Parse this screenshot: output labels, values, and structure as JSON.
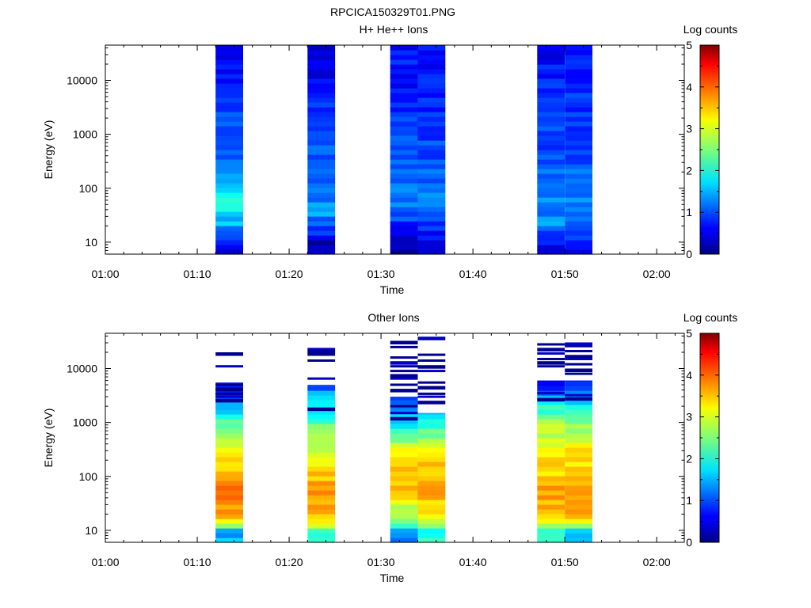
{
  "figure_title": "RPCICA150329T01.PNG",
  "chart_data": [
    {
      "type": "heatmap",
      "title": "H+ He++ Ions",
      "xlabel": "Time",
      "ylabel": "Energy (eV)",
      "x_ticks": [
        "01:00",
        "01:10",
        "01:20",
        "01:30",
        "01:40",
        "01:50",
        "02:00"
      ],
      "x_range": [
        "01:00",
        "02:03"
      ],
      "y_scale": "log",
      "y_ticks": [
        "10",
        "100",
        "1000",
        "10000"
      ],
      "y_range": [
        6,
        45000
      ],
      "colorbar": {
        "label": "Log counts",
        "ticks": [
          "0",
          "1",
          "2",
          "3",
          "4",
          "5"
        ],
        "range": [
          0,
          5
        ],
        "colormap": "jet"
      },
      "columns": [
        {
          "start": "01:12",
          "end": "01:15",
          "profile": [
            [
              7.5,
              0.6
            ],
            [
              10,
              1.0
            ],
            [
              16,
              1.2
            ],
            [
              22,
              1.5
            ],
            [
              30,
              1.6
            ],
            [
              45,
              1.9
            ],
            [
              70,
              2.0
            ],
            [
              90,
              1.8
            ],
            [
              150,
              1.3
            ],
            [
              300,
              1.1
            ],
            [
              1000,
              1.0
            ],
            [
              3000,
              0.9
            ],
            [
              10000,
              0.7
            ],
            [
              30000,
              0.6
            ],
            [
              45000,
              0.5
            ]
          ]
        },
        {
          "start": "01:22",
          "end": "01:25",
          "profile": [
            [
              7.5,
              0.2
            ],
            [
              10,
              0.3
            ],
            [
              14,
              0.8
            ],
            [
              25,
              1.1
            ],
            [
              40,
              1.5
            ],
            [
              60,
              1.3
            ],
            [
              100,
              1.2
            ],
            [
              300,
              1.1
            ],
            [
              1000,
              1.0
            ],
            [
              3000,
              0.8
            ],
            [
              10000,
              0.6
            ],
            [
              30000,
              0.5
            ],
            [
              45000,
              0.5
            ]
          ]
        },
        {
          "start": "01:31",
          "end": "01:34",
          "profile": [
            [
              7.5,
              0.3
            ],
            [
              12,
              0.4
            ],
            [
              20,
              0.8
            ],
            [
              30,
              1.0
            ],
            [
              60,
              1.2
            ],
            [
              150,
              1.1
            ],
            [
              500,
              1.0
            ],
            [
              2000,
              0.9
            ],
            [
              10000,
              0.7
            ],
            [
              30000,
              0.7
            ],
            [
              45000,
              0.6
            ]
          ]
        },
        {
          "start": "01:34",
          "end": "01:37",
          "profile": [
            [
              7.5,
              0.4
            ],
            [
              12,
              0.6
            ],
            [
              20,
              0.9
            ],
            [
              30,
              1.1
            ],
            [
              60,
              1.2
            ],
            [
              150,
              1.1
            ],
            [
              500,
              1.0
            ],
            [
              2000,
              0.8
            ],
            [
              10000,
              0.7
            ],
            [
              30000,
              0.6
            ],
            [
              45000,
              0.6
            ]
          ]
        },
        {
          "start": "01:47",
          "end": "01:50",
          "profile": [
            [
              7.5,
              0.5
            ],
            [
              12,
              0.7
            ],
            [
              20,
              1.4
            ],
            [
              30,
              1.3
            ],
            [
              60,
              1.3
            ],
            [
              150,
              1.1
            ],
            [
              500,
              1.0
            ],
            [
              2000,
              0.9
            ],
            [
              10000,
              0.8
            ],
            [
              30000,
              0.6
            ],
            [
              45000,
              0.6
            ]
          ]
        },
        {
          "start": "01:50",
          "end": "01:53",
          "profile": [
            [
              7.5,
              0.5
            ],
            [
              12,
              0.8
            ],
            [
              20,
              1.2
            ],
            [
              30,
              1.3
            ],
            [
              60,
              1.2
            ],
            [
              150,
              1.1
            ],
            [
              500,
              1.0
            ],
            [
              2000,
              0.9
            ],
            [
              10000,
              0.8
            ],
            [
              30000,
              0.6
            ],
            [
              45000,
              0.6
            ]
          ]
        }
      ]
    },
    {
      "type": "heatmap",
      "title": "Other Ions",
      "xlabel": "Time",
      "ylabel": "Energy (eV)",
      "x_ticks": [
        "01:00",
        "01:10",
        "01:20",
        "01:30",
        "01:40",
        "01:50",
        "02:00"
      ],
      "x_range": [
        "01:00",
        "02:03"
      ],
      "y_scale": "log",
      "y_ticks": [
        "10",
        "100",
        "1000",
        "10000"
      ],
      "y_range": [
        6,
        45000
      ],
      "colorbar": {
        "label": "Log counts",
        "ticks": [
          "0",
          "1",
          "2",
          "3",
          "4",
          "5"
        ],
        "range": [
          0,
          5
        ],
        "colormap": "jet"
      },
      "columns": [
        {
          "start": "01:12",
          "end": "01:15",
          "top": 5500,
          "profile": [
            [
              7.5,
              1.5
            ],
            [
              10,
              1.5
            ],
            [
              13,
              3.1
            ],
            [
              16,
              3.1
            ],
            [
              20,
              3.6
            ],
            [
              35,
              3.7
            ],
            [
              55,
              3.9
            ],
            [
              80,
              3.9
            ],
            [
              100,
              3.6
            ],
            [
              200,
              3.2
            ],
            [
              400,
              3.0
            ],
            [
              700,
              2.7
            ],
            [
              1200,
              2.2
            ],
            [
              1800,
              1.6
            ],
            [
              3000,
              1.0
            ],
            [
              5500,
              0.6
            ]
          ],
          "sparse": [
            2600,
            3000,
            3400,
            4200,
            5000,
            11000,
            19000
          ]
        },
        {
          "start": "01:22",
          "end": "01:25",
          "top": 5000,
          "profile": [
            [
              7.5,
              2.0
            ],
            [
              10,
              2.0
            ],
            [
              13,
              3.1
            ],
            [
              16,
              3.1
            ],
            [
              20,
              3.4
            ],
            [
              40,
              3.6
            ],
            [
              70,
              3.6
            ],
            [
              100,
              3.4
            ],
            [
              200,
              3.1
            ],
            [
              400,
              2.8
            ],
            [
              800,
              2.4
            ],
            [
              1500,
              2.0
            ],
            [
              3000,
              1.6
            ],
            [
              5000,
              1.0
            ]
          ],
          "sparse": [
            1800,
            6500,
            14000,
            19000,
            21000,
            23000
          ]
        },
        {
          "start": "01:31",
          "end": "01:34",
          "top": 3000,
          "profile": [
            [
              7.5,
              1.3
            ],
            [
              10,
              1.3
            ],
            [
              13,
              2.3
            ],
            [
              20,
              2.6
            ],
            [
              35,
              3.1
            ],
            [
              60,
              3.4
            ],
            [
              100,
              3.6
            ],
            [
              200,
              3.3
            ],
            [
              400,
              2.8
            ],
            [
              800,
              2.0
            ],
            [
              1500,
              1.4
            ],
            [
              3000,
              0.7
            ]
          ],
          "sparse": [
            1200,
            1500,
            2000,
            4000,
            5000,
            6500,
            7500,
            9000,
            11000,
            13000,
            16000,
            25000,
            31000
          ]
        },
        {
          "start": "01:34",
          "end": "01:37",
          "top": 1500,
          "profile": [
            [
              7.5,
              2.0
            ],
            [
              10,
              2.0
            ],
            [
              13,
              3.0
            ],
            [
              20,
              3.1
            ],
            [
              35,
              3.4
            ],
            [
              60,
              3.6
            ],
            [
              100,
              3.5
            ],
            [
              200,
              3.3
            ],
            [
              400,
              3.0
            ],
            [
              800,
              2.1
            ],
            [
              1500,
              1.6
            ]
          ],
          "sparse": [
            2400,
            3000,
            3400,
            4500,
            5500,
            9000,
            11000,
            14000,
            18000,
            37000
          ]
        },
        {
          "start": "01:47",
          "end": "01:50",
          "top": 6000,
          "profile": [
            [
              7.5,
              2.0
            ],
            [
              10,
              2.0
            ],
            [
              13,
              3.1
            ],
            [
              20,
              3.4
            ],
            [
              40,
              3.5
            ],
            [
              70,
              3.6
            ],
            [
              100,
              3.4
            ],
            [
              200,
              3.2
            ],
            [
              400,
              3.0
            ],
            [
              800,
              2.8
            ],
            [
              1500,
              2.3
            ],
            [
              2500,
              1.8
            ],
            [
              4000,
              1.0
            ],
            [
              6000,
              0.6
            ]
          ],
          "sparse": [
            2700,
            3500,
            11000,
            13000,
            15000,
            19000,
            23000,
            28000
          ]
        },
        {
          "start": "01:50",
          "end": "01:53",
          "top": 6000,
          "profile": [
            [
              7.5,
              1.6
            ],
            [
              10,
              1.6
            ],
            [
              13,
              3.1
            ],
            [
              20,
              3.5
            ],
            [
              40,
              3.6
            ],
            [
              70,
              3.4
            ],
            [
              100,
              3.3
            ],
            [
              200,
              3.2
            ],
            [
              400,
              3.1
            ],
            [
              800,
              2.6
            ],
            [
              1500,
              2.2
            ],
            [
              2500,
              1.7
            ],
            [
              4000,
              1.2
            ],
            [
              6000,
              0.7
            ]
          ],
          "sparse": [
            2800,
            3200,
            8000,
            9500,
            12000,
            15000,
            17000,
            21000,
            26000,
            29000
          ]
        }
      ]
    }
  ]
}
